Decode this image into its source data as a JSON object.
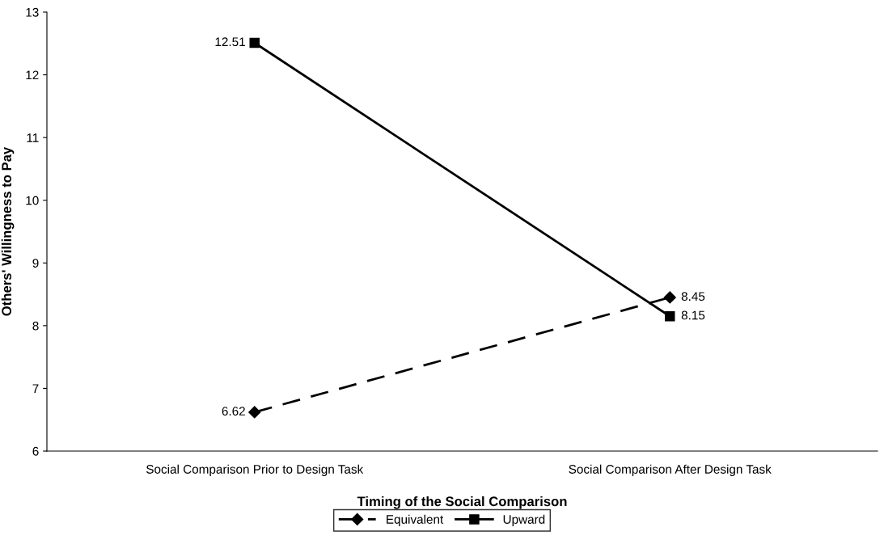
{
  "chart_data": {
    "type": "line",
    "xlabel": "Timing of the Social Comparison",
    "ylabel": "Others' Willingness to Pay",
    "categories": [
      "Social Comparison Prior to Design Task",
      "Social Comparison After Design Task"
    ],
    "series": [
      {
        "name": "Equivalent",
        "color": "#000000",
        "values": [
          6.62,
          8.45
        ],
        "line_style": "dashed",
        "marker": "diamond"
      },
      {
        "name": "Upward",
        "color": "#000000",
        "values": [
          12.51,
          8.15
        ],
        "line_style": "solid",
        "marker": "square"
      }
    ],
    "ylim": [
      6,
      13
    ],
    "yticks": [
      6,
      7,
      8,
      9,
      10,
      11,
      12,
      13
    ],
    "data_labels": true,
    "grid": false,
    "legend": "bottom"
  }
}
